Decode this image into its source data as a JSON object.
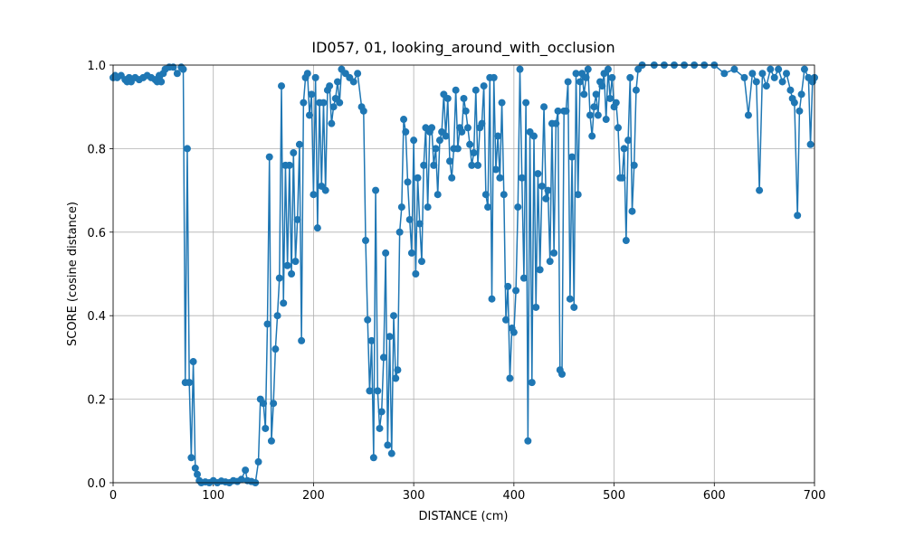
{
  "chart_data": {
    "type": "line",
    "title": "ID057, 01, looking_around_with_occlusion",
    "x_label": "DISTANCE (cm)",
    "y_label": "SCORE (cosine distance)",
    "xlim": [
      0,
      700
    ],
    "xticks": [
      0,
      100,
      200,
      300,
      400,
      500,
      600,
      700
    ],
    "ylim": [
      0,
      1
    ],
    "yticks": [
      {
        "value": 0,
        "label": "0.0"
      },
      {
        "value": 0.2,
        "label": "0.2"
      },
      {
        "value": 0.4,
        "label": "0.4"
      },
      {
        "value": 0.6,
        "label": "0.6"
      },
      {
        "value": 0.8,
        "label": "0.8"
      },
      {
        "value": 1,
        "label": "1.0"
      }
    ],
    "grid": true,
    "color": "#1f77b4",
    "x": [
      0,
      2,
      4,
      8,
      12,
      14,
      16,
      18,
      22,
      26,
      30,
      34,
      38,
      42,
      44,
      46,
      48,
      50,
      52,
      56,
      60,
      64,
      68,
      70,
      72,
      74,
      76,
      78,
      80,
      82,
      84,
      86,
      88,
      92,
      96,
      100,
      104,
      108,
      112,
      116,
      120,
      124,
      128,
      132,
      134,
      138,
      142,
      145,
      147,
      150,
      152,
      154,
      156,
      158,
      160,
      162,
      164,
      166,
      168,
      170,
      172,
      174,
      176,
      178,
      180,
      182,
      184,
      186,
      188,
      190,
      192,
      194,
      196,
      198,
      200,
      202,
      204,
      206,
      208,
      210,
      212,
      214,
      216,
      218,
      220,
      222,
      224,
      226,
      228,
      232,
      236,
      240,
      244,
      248,
      250,
      252,
      254,
      256,
      258,
      260,
      262,
      264,
      266,
      268,
      270,
      272,
      274,
      276,
      278,
      280,
      282,
      284,
      286,
      288,
      290,
      292,
      294,
      296,
      298,
      300,
      302,
      304,
      306,
      308,
      310,
      312,
      314,
      316,
      318,
      320,
      322,
      324,
      326,
      328,
      330,
      332,
      334,
      336,
      338,
      340,
      342,
      344,
      346,
      348,
      350,
      352,
      354,
      356,
      358,
      360,
      362,
      364,
      366,
      368,
      370,
      372,
      374,
      376,
      378,
      380,
      382,
      384,
      386,
      388,
      390,
      392,
      394,
      396,
      398,
      400,
      402,
      404,
      406,
      408,
      410,
      412,
      414,
      416,
      418,
      420,
      422,
      424,
      426,
      428,
      430,
      432,
      434,
      436,
      438,
      440,
      442,
      444,
      446,
      448,
      450,
      452,
      454,
      456,
      458,
      460,
      462,
      464,
      466,
      468,
      470,
      472,
      474,
      476,
      478,
      480,
      482,
      484,
      486,
      488,
      490,
      492,
      494,
      496,
      498,
      500,
      502,
      504,
      506,
      508,
      510,
      512,
      514,
      516,
      518,
      520,
      522,
      524,
      528,
      540,
      550,
      560,
      570,
      580,
      590,
      600,
      610,
      620,
      630,
      634,
      638,
      642,
      645,
      648,
      652,
      656,
      660,
      664,
      668,
      672,
      676,
      678,
      680,
      683,
      685,
      687,
      690,
      694,
      696,
      698,
      700
    ],
    "values": [
      0.97,
      0.975,
      0.97,
      0.975,
      0.965,
      0.96,
      0.97,
      0.96,
      0.97,
      0.965,
      0.97,
      0.975,
      0.97,
      0.965,
      0.96,
      0.975,
      0.96,
      0.98,
      0.99,
      0.995,
      0.995,
      0.98,
      0.995,
      0.99,
      0.24,
      0.8,
      0.24,
      0.06,
      0.29,
      0.035,
      0.02,
      0.005,
      0,
      0.002,
      0,
      0.005,
      0,
      0.004,
      0.002,
      0,
      0.005,
      0.003,
      0.008,
      0.03,
      0.005,
      0.003,
      0,
      0.05,
      0.2,
      0.19,
      0.13,
      0.38,
      0.78,
      0.1,
      0.19,
      0.32,
      0.4,
      0.49,
      0.95,
      0.43,
      0.76,
      0.52,
      0.76,
      0.5,
      0.79,
      0.53,
      0.63,
      0.81,
      0.34,
      0.91,
      0.97,
      0.98,
      0.88,
      0.93,
      0.69,
      0.97,
      0.61,
      0.91,
      0.71,
      0.91,
      0.7,
      0.94,
      0.95,
      0.86,
      0.9,
      0.92,
      0.96,
      0.91,
      0.99,
      0.98,
      0.97,
      0.96,
      0.98,
      0.9,
      0.89,
      0.58,
      0.39,
      0.22,
      0.34,
      0.06,
      0.7,
      0.22,
      0.13,
      0.17,
      0.3,
      0.55,
      0.09,
      0.35,
      0.07,
      0.4,
      0.25,
      0.27,
      0.6,
      0.66,
      0.87,
      0.84,
      0.72,
      0.63,
      0.55,
      0.82,
      0.5,
      0.73,
      0.62,
      0.53,
      0.76,
      0.85,
      0.66,
      0.84,
      0.85,
      0.76,
      0.8,
      0.69,
      0.82,
      0.84,
      0.93,
      0.83,
      0.92,
      0.77,
      0.73,
      0.8,
      0.94,
      0.8,
      0.85,
      0.84,
      0.92,
      0.89,
      0.85,
      0.81,
      0.76,
      0.79,
      0.94,
      0.76,
      0.85,
      0.86,
      0.95,
      0.69,
      0.66,
      0.97,
      0.44,
      0.97,
      0.75,
      0.83,
      0.73,
      0.91,
      0.69,
      0.39,
      0.47,
      0.25,
      0.37,
      0.36,
      0.46,
      0.66,
      0.99,
      0.73,
      0.49,
      0.91,
      0.1,
      0.84,
      0.24,
      0.83,
      0.42,
      0.74,
      0.51,
      0.71,
      0.9,
      0.68,
      0.7,
      0.53,
      0.86,
      0.55,
      0.86,
      0.89,
      0.27,
      0.26,
      0.89,
      0.89,
      0.96,
      0.44,
      0.78,
      0.42,
      0.98,
      0.69,
      0.96,
      0.98,
      0.93,
      0.97,
      0.99,
      0.88,
      0.83,
      0.9,
      0.93,
      0.88,
      0.96,
      0.95,
      0.98,
      0.87,
      0.99,
      0.92,
      0.97,
      0.9,
      0.91,
      0.85,
      0.73,
      0.73,
      0.8,
      0.58,
      0.82,
      0.97,
      0.65,
      0.76,
      0.94,
      0.99,
      1,
      1,
      1,
      1,
      1,
      1,
      1,
      1,
      0.98,
      0.99,
      0.97,
      0.88,
      0.98,
      0.96,
      0.7,
      0.98,
      0.95,
      0.99,
      0.97,
      0.99,
      0.96,
      0.98,
      0.94,
      0.92,
      0.91,
      0.64,
      0.89,
      0.93,
      0.99,
      0.97,
      0.81,
      0.96,
      0.97
    ]
  }
}
